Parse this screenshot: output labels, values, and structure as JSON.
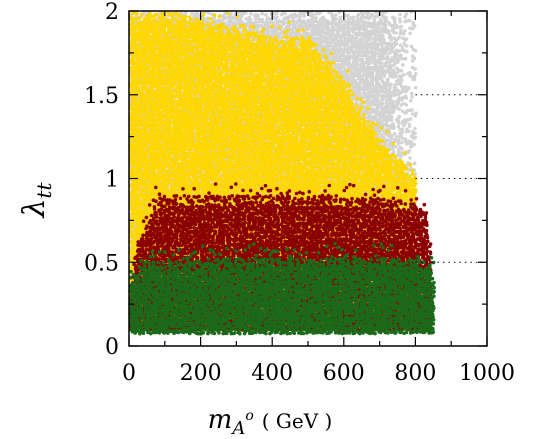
{
  "chart_data": {
    "type": "scatter",
    "title": "",
    "xlabel": {
      "symbol": "m",
      "sub": "A",
      "sup": "o",
      "unit": "( GeV )"
    },
    "ylabel": {
      "symbol": "λ",
      "sub": "tt"
    },
    "xlim": [
      0,
      1000
    ],
    "ylim": [
      0,
      2
    ],
    "xticks": [
      0,
      200,
      400,
      600,
      800,
      1000
    ],
    "xtick_labels": [
      "0",
      "200",
      "400",
      "600",
      "800",
      "1000"
    ],
    "yticks": [
      0,
      0.5,
      1,
      1.5,
      2
    ],
    "ytick_labels": [
      "0",
      "0.5",
      "1",
      "1.5",
      "2"
    ],
    "grid": {
      "style": "dotted",
      "y": [
        0.5,
        1,
        1.5
      ],
      "x_from": 800
    },
    "legend": "none",
    "series": [
      {
        "color": "#d3d3d3",
        "region": {
          "x": [
            0,
            800
          ],
          "y": [
            0.1,
            2.0
          ]
        },
        "sparse_edge": {
          "x": [
            700,
            830
          ],
          "y": [
            0.9,
            2.0
          ]
        },
        "density": 1.0
      },
      {
        "color": "#ffd700",
        "region": {
          "x": [
            0,
            800
          ],
          "y": [
            0.1,
            2.0
          ]
        },
        "upper_edge": [
          [
            10,
            2.0
          ],
          [
            100,
            2.0
          ],
          [
            200,
            1.95
          ],
          [
            300,
            1.9
          ],
          [
            400,
            1.85
          ],
          [
            500,
            1.85
          ],
          [
            600,
            1.6
          ],
          [
            680,
            1.3
          ],
          [
            760,
            1.1
          ],
          [
            820,
            1.0
          ]
        ],
        "density": 1.0
      },
      {
        "color": "#8b0000",
        "region": {
          "x": [
            5,
            845
          ],
          "y": [
            0.1,
            0.95
          ]
        },
        "upper_edge": [
          [
            5,
            0.35
          ],
          [
            20,
            0.55
          ],
          [
            40,
            0.7
          ],
          [
            60,
            0.78
          ],
          [
            80,
            0.88
          ],
          [
            150,
            0.9
          ],
          [
            300,
            0.9
          ],
          [
            500,
            0.9
          ],
          [
            700,
            0.88
          ],
          [
            800,
            0.85
          ],
          [
            830,
            0.8
          ],
          [
            845,
            0.55
          ]
        ],
        "density": 1.0
      },
      {
        "color": "#1a6a1a",
        "region": {
          "x": [
            0,
            855
          ],
          "y": [
            0.08,
            0.55
          ]
        },
        "upper_edge": [
          [
            0,
            0.45
          ],
          [
            20,
            0.42
          ],
          [
            50,
            0.5
          ],
          [
            400,
            0.53
          ],
          [
            800,
            0.53
          ],
          [
            840,
            0.5
          ],
          [
            855,
            0.4
          ]
        ],
        "density": 1.0
      }
    ]
  }
}
